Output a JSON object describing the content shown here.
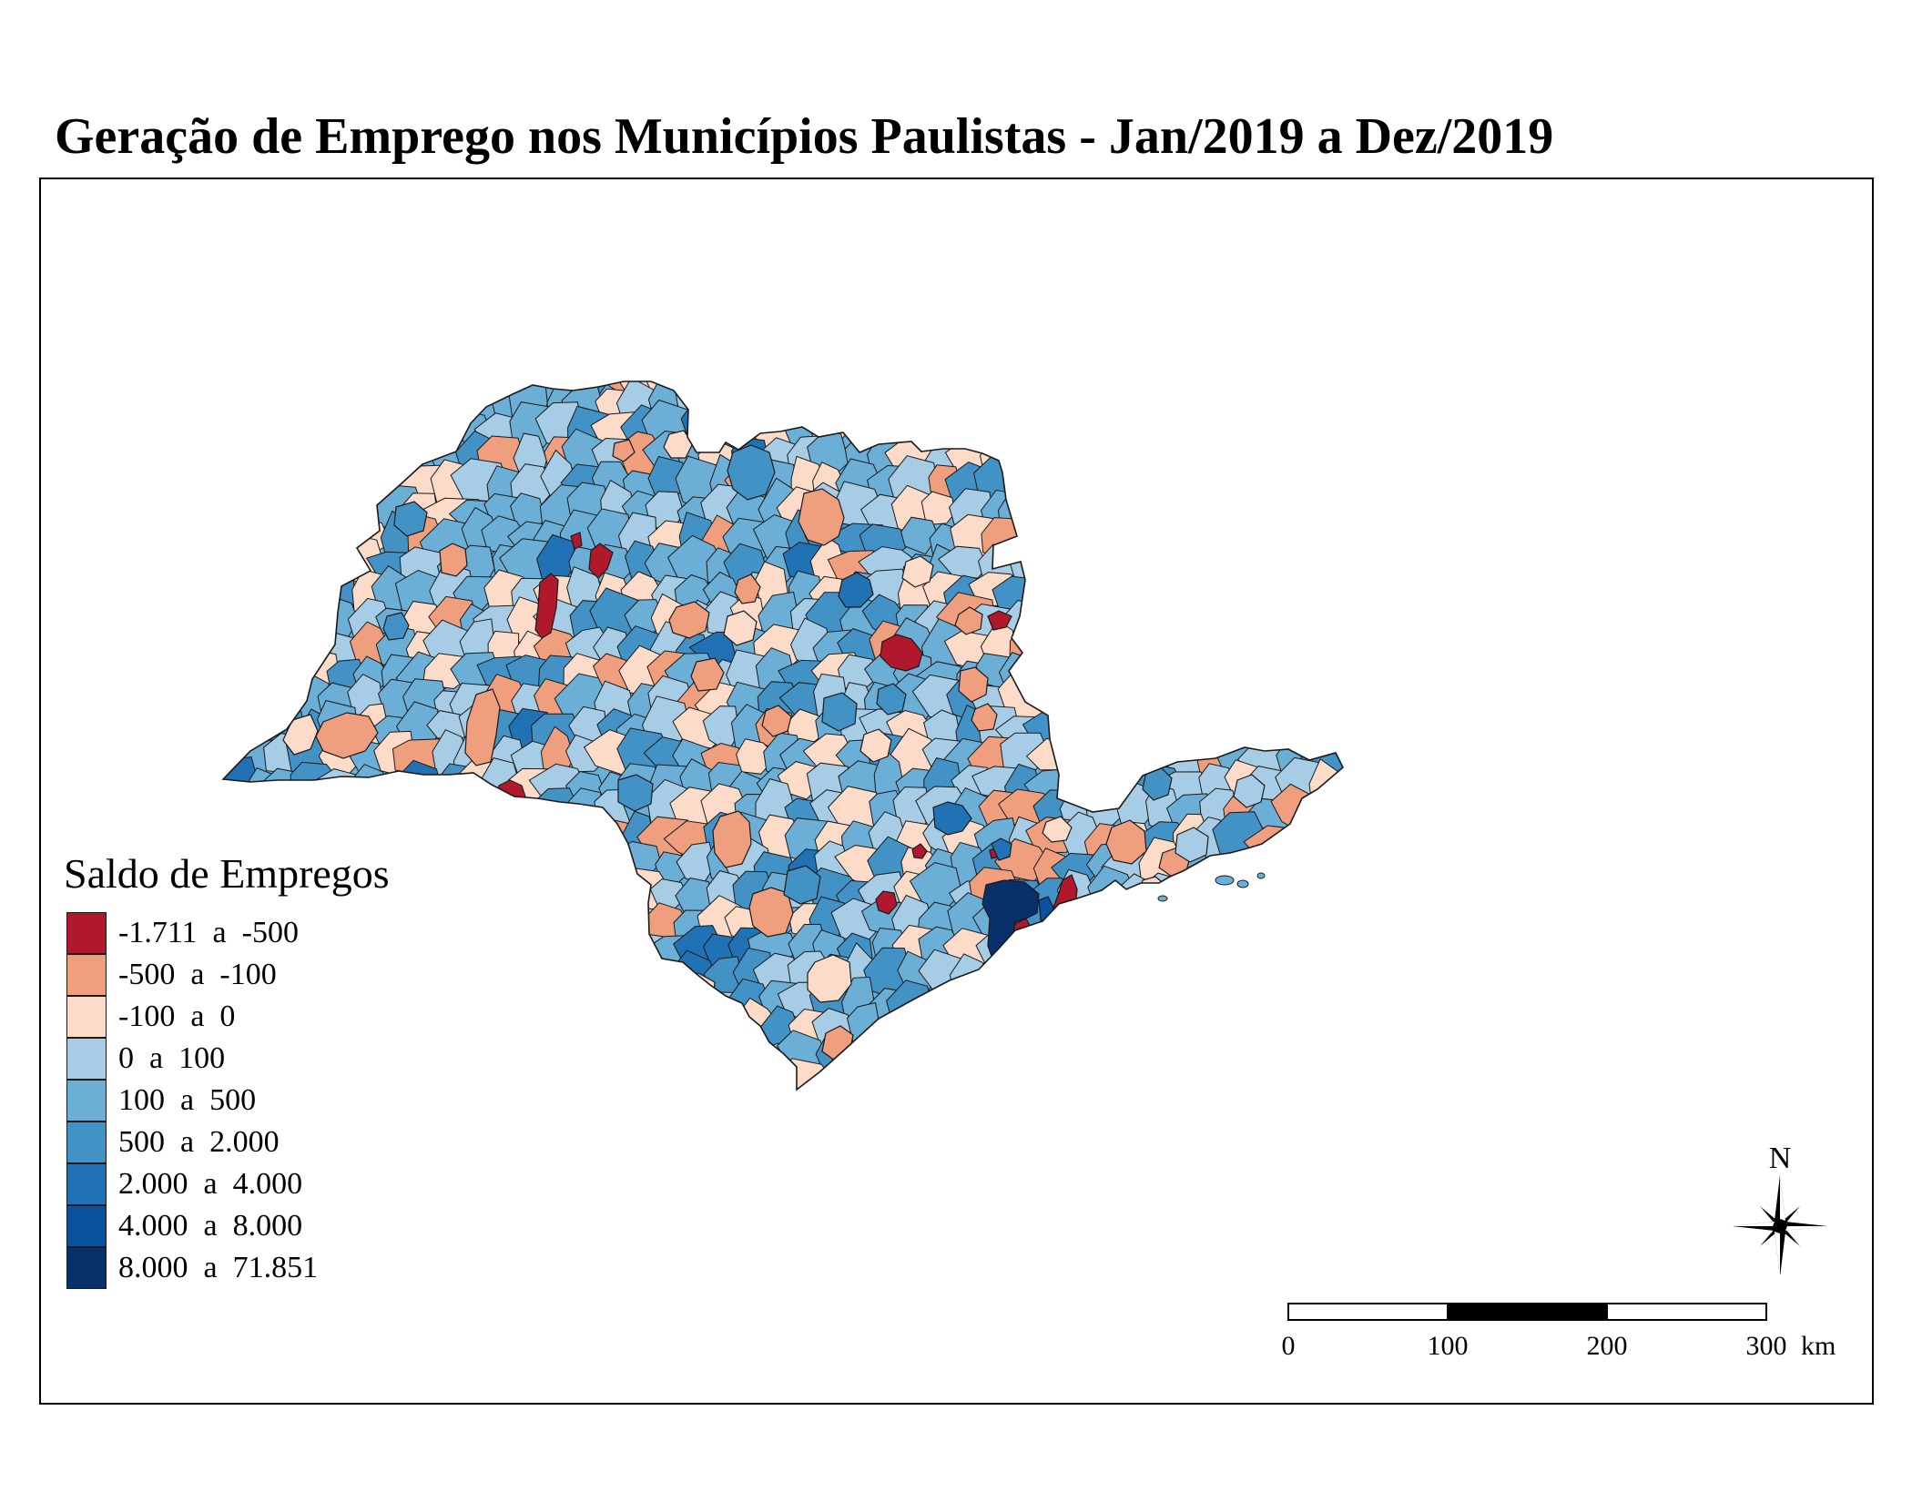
{
  "title": "Geração de Emprego nos Municípios Paulistas - Jan/2019 a Dez/2019",
  "map": {
    "region": "Estado de São Paulo - municípios",
    "fill_stroke_color": "#1a1a1a"
  },
  "legend": {
    "title": "Saldo de Empregos",
    "classes": [
      {
        "label": "-1.711  a  -500",
        "color": "#b2182b"
      },
      {
        "label": "-500  a  -100",
        "color": "#ef9f7e"
      },
      {
        "label": "-100  a  0",
        "color": "#fcdcc8"
      },
      {
        "label": "0  a  100",
        "color": "#a6cde5"
      },
      {
        "label": "100  a  500",
        "color": "#6baed6"
      },
      {
        "label": "500  a  2.000",
        "color": "#4292c6"
      },
      {
        "label": "2.000  a  4.000",
        "color": "#2171b5"
      },
      {
        "label": "4.000  a  8.000",
        "color": "#08519c"
      },
      {
        "label": "8.000  a  71.851",
        "color": "#08306b"
      }
    ]
  },
  "north_arrow": {
    "label": "N",
    "icon": "compass-rose-icon"
  },
  "scalebar": {
    "ticks": [
      "0",
      "100",
      "200",
      "300"
    ],
    "unit": "km"
  }
}
